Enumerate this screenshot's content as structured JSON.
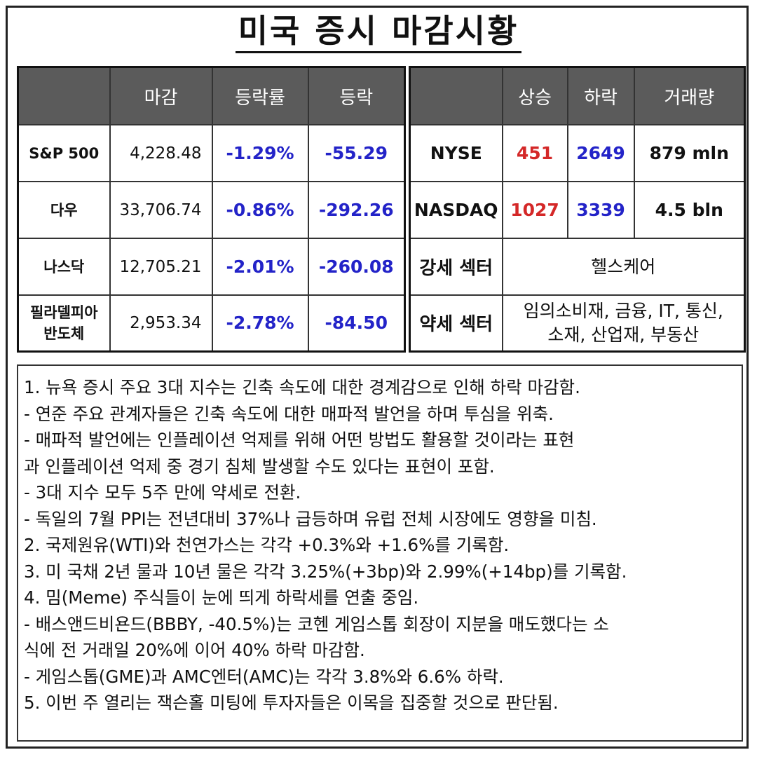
{
  "title": "미국 증시 마감시황",
  "index_table": {
    "headers": [
      "",
      "마감",
      "등락률",
      "등락"
    ],
    "rows": [
      {
        "name": "S&P 500",
        "close": "4,228.48",
        "pct": "-1.29%",
        "change": "-55.29"
      },
      {
        "name": "다우",
        "close": "33,706.74",
        "pct": "-0.86%",
        "change": "-292.26"
      },
      {
        "name": "나스닥",
        "close": "12,705.21",
        "pct": "-2.01%",
        "change": "-260.08"
      },
      {
        "name_line1": "필라델피아",
        "name_line2": "반도체",
        "close": "2,953.34",
        "pct": "-2.78%",
        "change": "-84.50"
      }
    ]
  },
  "market_table": {
    "headers": [
      "",
      "상승",
      "하락",
      "거래량"
    ],
    "rows": [
      {
        "exchange": "NYSE",
        "up": "451",
        "down": "2649",
        "volume": "879 mln"
      },
      {
        "exchange": "NASDAQ",
        "up": "1027",
        "down": "3339",
        "volume": "4.5 bln"
      }
    ],
    "strong_label": "강세 섹터",
    "strong_value": "헬스케어",
    "weak_label": "약세 섹터",
    "weak_value_line1": "임의소비재, 금융, IT, 통신,",
    "weak_value_line2": "소재, 산업재, 부동산"
  },
  "notes": [
    "1. 뉴욕 증시 주요 3대 지수는 긴축 속도에 대한 경계감으로 인해 하락 마감함.",
    "- 연준 주요 관계자들은 긴축 속도에 대한 매파적 발언을 하며 투심을 위축.",
    "- 매파적 발언에는 인플레이션 억제를 위해 어떤 방법도 활용할 것이라는 표현",
    "과 인플레이션 억제 중 경기 침체 발생할 수도 있다는 표현이 포함.",
    "- 3대 지수 모두 5주 만에 약세로 전환.",
    "- 독일의 7월 PPI는 전년대비 37%나 급등하며 유럽 전체 시장에도 영향을 미침.",
    "2. 국제원유(WTI)와 천연가스는 각각 +0.3%와 +1.6%를 기록함.",
    "3. 미 국채 2년 물과 10년 물은 각각 3.25%(+3bp)와 2.99%(+14bp)를 기록함.",
    "4. 밈(Meme) 주식들이 눈에 띄게 하락세를 연출 중임.",
    "- 배스앤드비욘드(BBBY, -40.5%)는 코헨 게임스톱 회장이 지분을 매도했다는 소",
    "식에 전 거래일 20%에 이어 40% 하락 마감함.",
    "- 게임스톱(GME)과 AMC엔터(AMC)는 각각 3.8%와 6.6% 하락.",
    "5. 이번 주 열리는 잭슨홀 미팅에 투자자들은 이목을 집중할 것으로 판단됨."
  ]
}
